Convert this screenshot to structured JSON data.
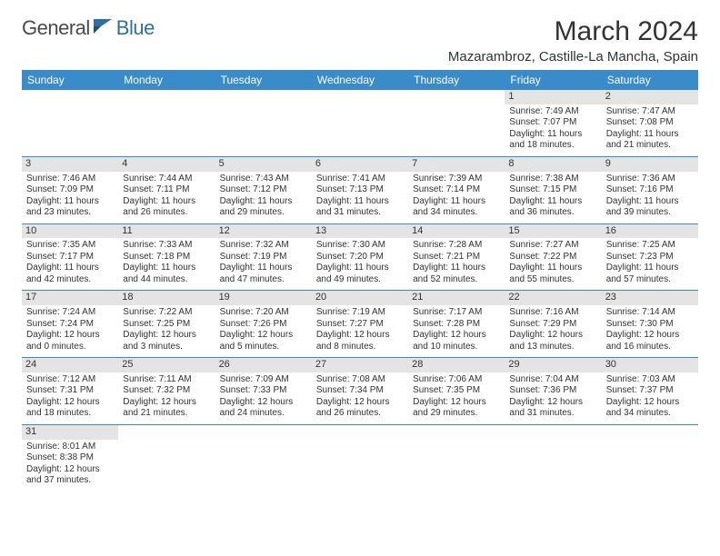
{
  "brand": {
    "part1": "General",
    "part2": "Blue"
  },
  "title": "March 2024",
  "location": "Mazarambroz, Castille-La Mancha, Spain",
  "colors": {
    "header_bg": "#3a8bc9",
    "header_text": "#ffffff",
    "daynum_bg": "#e4e4e4",
    "row_divider": "#3a8bc9",
    "brand_blue": "#2f6fa7",
    "brand_grey": "#4a4a4a"
  },
  "weekdays": [
    "Sunday",
    "Monday",
    "Tuesday",
    "Wednesday",
    "Thursday",
    "Friday",
    "Saturday"
  ],
  "cells": [
    {
      "day": "",
      "lines": []
    },
    {
      "day": "",
      "lines": []
    },
    {
      "day": "",
      "lines": []
    },
    {
      "day": "",
      "lines": []
    },
    {
      "day": "",
      "lines": []
    },
    {
      "day": "1",
      "lines": [
        "Sunrise: 7:49 AM",
        "Sunset: 7:07 PM",
        "Daylight: 11 hours and 18 minutes."
      ]
    },
    {
      "day": "2",
      "lines": [
        "Sunrise: 7:47 AM",
        "Sunset: 7:08 PM",
        "Daylight: 11 hours and 21 minutes."
      ]
    },
    {
      "day": "3",
      "lines": [
        "Sunrise: 7:46 AM",
        "Sunset: 7:09 PM",
        "Daylight: 11 hours and 23 minutes."
      ]
    },
    {
      "day": "4",
      "lines": [
        "Sunrise: 7:44 AM",
        "Sunset: 7:11 PM",
        "Daylight: 11 hours and 26 minutes."
      ]
    },
    {
      "day": "5",
      "lines": [
        "Sunrise: 7:43 AM",
        "Sunset: 7:12 PM",
        "Daylight: 11 hours and 29 minutes."
      ]
    },
    {
      "day": "6",
      "lines": [
        "Sunrise: 7:41 AM",
        "Sunset: 7:13 PM",
        "Daylight: 11 hours and 31 minutes."
      ]
    },
    {
      "day": "7",
      "lines": [
        "Sunrise: 7:39 AM",
        "Sunset: 7:14 PM",
        "Daylight: 11 hours and 34 minutes."
      ]
    },
    {
      "day": "8",
      "lines": [
        "Sunrise: 7:38 AM",
        "Sunset: 7:15 PM",
        "Daylight: 11 hours and 36 minutes."
      ]
    },
    {
      "day": "9",
      "lines": [
        "Sunrise: 7:36 AM",
        "Sunset: 7:16 PM",
        "Daylight: 11 hours and 39 minutes."
      ]
    },
    {
      "day": "10",
      "lines": [
        "Sunrise: 7:35 AM",
        "Sunset: 7:17 PM",
        "Daylight: 11 hours and 42 minutes."
      ]
    },
    {
      "day": "11",
      "lines": [
        "Sunrise: 7:33 AM",
        "Sunset: 7:18 PM",
        "Daylight: 11 hours and 44 minutes."
      ]
    },
    {
      "day": "12",
      "lines": [
        "Sunrise: 7:32 AM",
        "Sunset: 7:19 PM",
        "Daylight: 11 hours and 47 minutes."
      ]
    },
    {
      "day": "13",
      "lines": [
        "Sunrise: 7:30 AM",
        "Sunset: 7:20 PM",
        "Daylight: 11 hours and 49 minutes."
      ]
    },
    {
      "day": "14",
      "lines": [
        "Sunrise: 7:28 AM",
        "Sunset: 7:21 PM",
        "Daylight: 11 hours and 52 minutes."
      ]
    },
    {
      "day": "15",
      "lines": [
        "Sunrise: 7:27 AM",
        "Sunset: 7:22 PM",
        "Daylight: 11 hours and 55 minutes."
      ]
    },
    {
      "day": "16",
      "lines": [
        "Sunrise: 7:25 AM",
        "Sunset: 7:23 PM",
        "Daylight: 11 hours and 57 minutes."
      ]
    },
    {
      "day": "17",
      "lines": [
        "Sunrise: 7:24 AM",
        "Sunset: 7:24 PM",
        "Daylight: 12 hours and 0 minutes."
      ]
    },
    {
      "day": "18",
      "lines": [
        "Sunrise: 7:22 AM",
        "Sunset: 7:25 PM",
        "Daylight: 12 hours and 3 minutes."
      ]
    },
    {
      "day": "19",
      "lines": [
        "Sunrise: 7:20 AM",
        "Sunset: 7:26 PM",
        "Daylight: 12 hours and 5 minutes."
      ]
    },
    {
      "day": "20",
      "lines": [
        "Sunrise: 7:19 AM",
        "Sunset: 7:27 PM",
        "Daylight: 12 hours and 8 minutes."
      ]
    },
    {
      "day": "21",
      "lines": [
        "Sunrise: 7:17 AM",
        "Sunset: 7:28 PM",
        "Daylight: 12 hours and 10 minutes."
      ]
    },
    {
      "day": "22",
      "lines": [
        "Sunrise: 7:16 AM",
        "Sunset: 7:29 PM",
        "Daylight: 12 hours and 13 minutes."
      ]
    },
    {
      "day": "23",
      "lines": [
        "Sunrise: 7:14 AM",
        "Sunset: 7:30 PM",
        "Daylight: 12 hours and 16 minutes."
      ]
    },
    {
      "day": "24",
      "lines": [
        "Sunrise: 7:12 AM",
        "Sunset: 7:31 PM",
        "Daylight: 12 hours and 18 minutes."
      ]
    },
    {
      "day": "25",
      "lines": [
        "Sunrise: 7:11 AM",
        "Sunset: 7:32 PM",
        "Daylight: 12 hours and 21 minutes."
      ]
    },
    {
      "day": "26",
      "lines": [
        "Sunrise: 7:09 AM",
        "Sunset: 7:33 PM",
        "Daylight: 12 hours and 24 minutes."
      ]
    },
    {
      "day": "27",
      "lines": [
        "Sunrise: 7:08 AM",
        "Sunset: 7:34 PM",
        "Daylight: 12 hours and 26 minutes."
      ]
    },
    {
      "day": "28",
      "lines": [
        "Sunrise: 7:06 AM",
        "Sunset: 7:35 PM",
        "Daylight: 12 hours and 29 minutes."
      ]
    },
    {
      "day": "29",
      "lines": [
        "Sunrise: 7:04 AM",
        "Sunset: 7:36 PM",
        "Daylight: 12 hours and 31 minutes."
      ]
    },
    {
      "day": "30",
      "lines": [
        "Sunrise: 7:03 AM",
        "Sunset: 7:37 PM",
        "Daylight: 12 hours and 34 minutes."
      ]
    },
    {
      "day": "31",
      "lines": [
        "Sunrise: 8:01 AM",
        "Sunset: 8:38 PM",
        "Daylight: 12 hours and 37 minutes."
      ]
    },
    {
      "day": "",
      "lines": []
    },
    {
      "day": "",
      "lines": []
    },
    {
      "day": "",
      "lines": []
    },
    {
      "day": "",
      "lines": []
    },
    {
      "day": "",
      "lines": []
    },
    {
      "day": "",
      "lines": []
    }
  ]
}
